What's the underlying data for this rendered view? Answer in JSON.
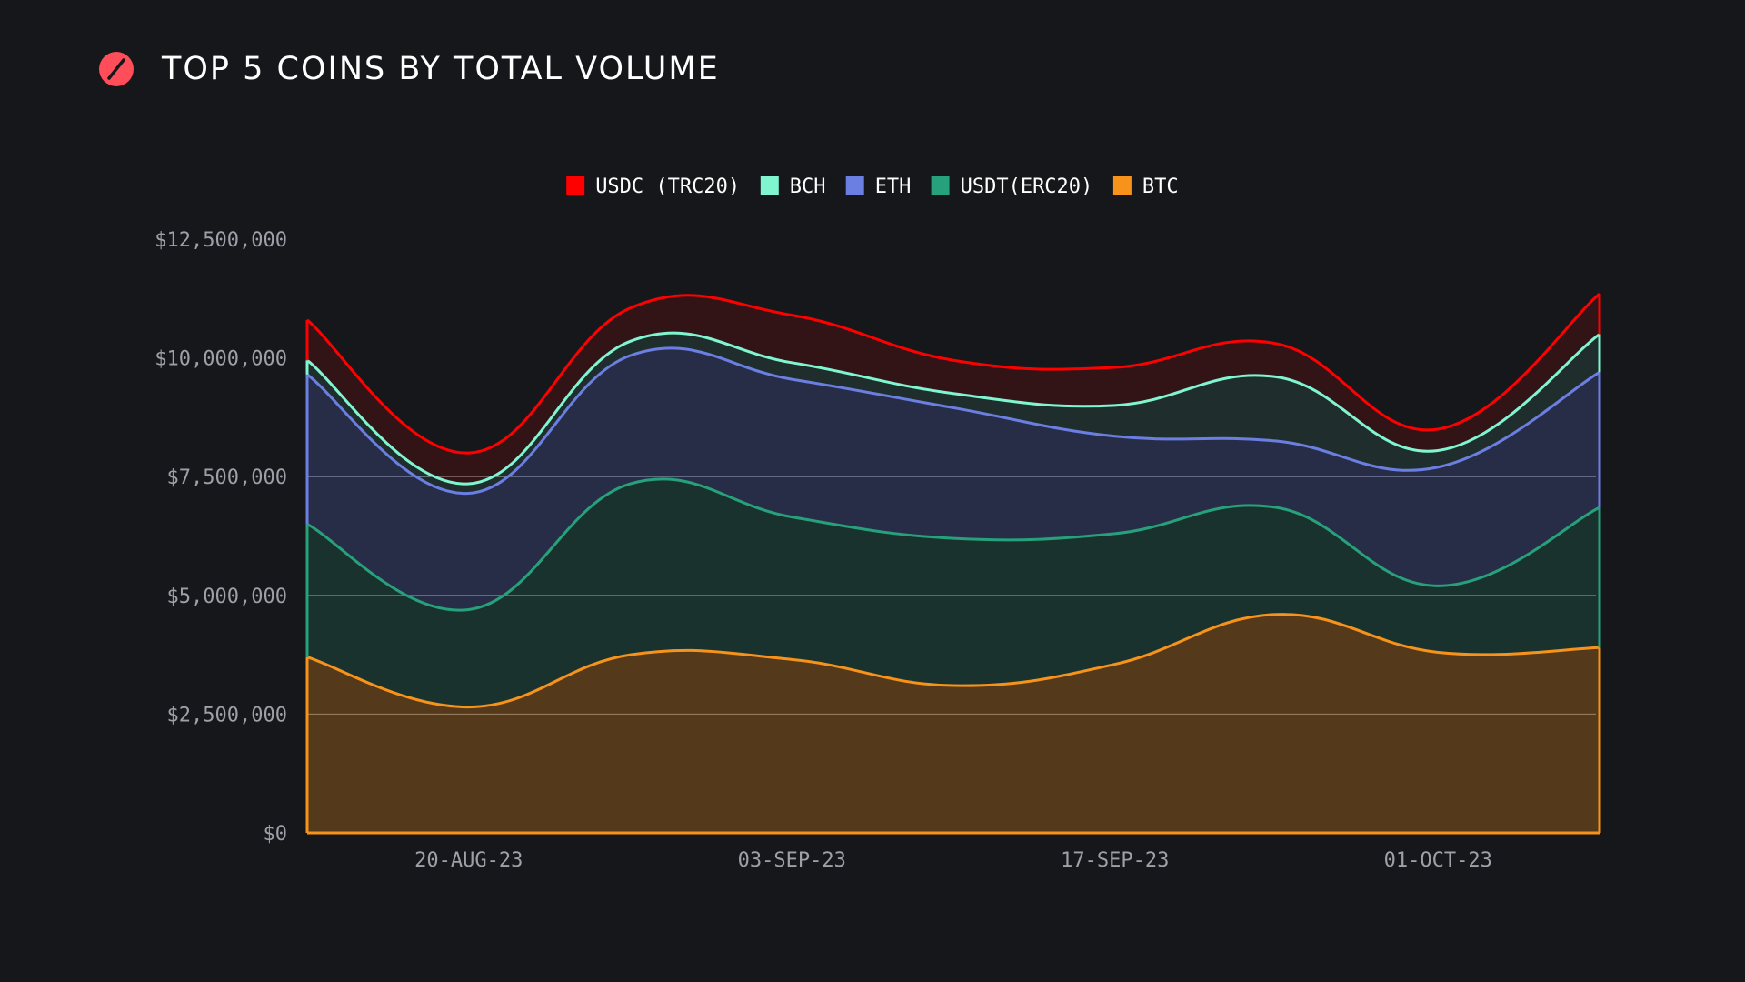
{
  "header": {
    "title": "TOP 5 COINS BY TOTAL VOLUME",
    "logo_icon": "slash-circle-icon",
    "logo_color": "#ff4d5a"
  },
  "chart_data": {
    "type": "area",
    "stacked": true,
    "title": "TOP 5 COINS BY TOTAL VOLUME",
    "xlabel": "",
    "ylabel": "",
    "x_ticks": [
      "20-AUG-23",
      "03-SEP-23",
      "17-SEP-23",
      "01-OCT-23"
    ],
    "y_ticks": [
      "$0",
      "$2,500,000",
      "$5,000,000",
      "$7,500,000",
      "$10,000,000",
      "$12,500,000"
    ],
    "ylim": [
      0,
      12500000
    ],
    "grid": "horizontal",
    "legend_position": "top-center",
    "x": [
      "13-AUG-23",
      "20-AUG-23",
      "27-AUG-23",
      "03-SEP-23",
      "10-SEP-23",
      "17-SEP-23",
      "24-SEP-23",
      "01-OCT-23",
      "08-OCT-23"
    ],
    "legend_order": [
      "USDC (TRC20)",
      "BCH",
      "ETH",
      "USDT(ERC20)",
      "BTC"
    ],
    "series": [
      {
        "name": "BTC",
        "color": "#f7931a",
        "values": [
          3700000,
          2650000,
          3750000,
          3650000,
          3100000,
          3550000,
          4600000,
          3800000,
          3900000
        ]
      },
      {
        "name": "USDT(ERC20)",
        "color": "#26a17b",
        "values": [
          2800000,
          2050000,
          3600000,
          3000000,
          3100000,
          2750000,
          2250000,
          1400000,
          2950000
        ]
      },
      {
        "name": "ETH",
        "color": "#6b7fe3",
        "values": [
          3150000,
          2450000,
          2700000,
          2900000,
          2750000,
          2050000,
          1400000,
          2500000,
          2850000
        ]
      },
      {
        "name": "BCH",
        "color": "#7ff5d0",
        "values": [
          300000,
          200000,
          300000,
          350000,
          300000,
          650000,
          1350000,
          350000,
          800000
        ]
      },
      {
        "name": "USDC (TRC20)",
        "color": "#ff0000",
        "values": [
          850000,
          650000,
          700000,
          1000000,
          700000,
          800000,
          700000,
          450000,
          850000
        ]
      }
    ]
  }
}
